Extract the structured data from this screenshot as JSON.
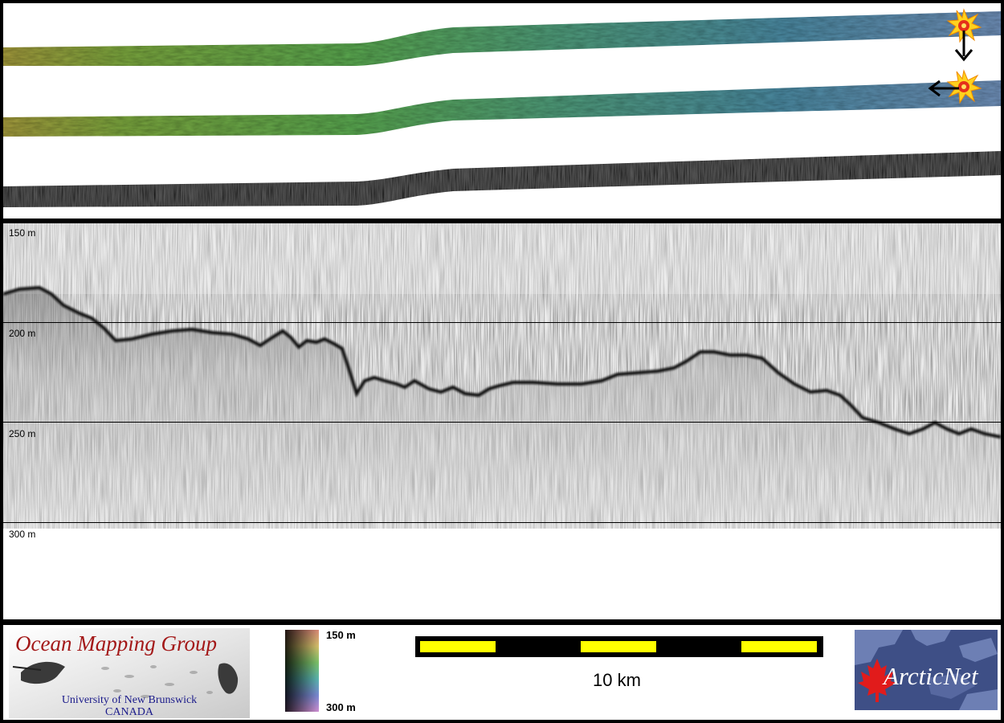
{
  "profile": {
    "depth_labels": [
      "150 m",
      "200 m",
      "250 m",
      "300 m"
    ]
  },
  "colorbar": {
    "top_label": "150 m",
    "bottom_label": "300 m"
  },
  "scale_bar": {
    "label": "10 km",
    "colors": [
      "#ffff00",
      "#000000"
    ]
  },
  "ogm_logo": {
    "title": "Ocean Mapping Group",
    "line1": "University of New Brunswick",
    "line2": "CANADA"
  },
  "arctic_logo": {
    "text": "ArcticNet"
  },
  "icons": [
    "explosion-marker-icon",
    "arrow-down-icon",
    "arrow-left-icon",
    "maple-leaf-icon"
  ]
}
